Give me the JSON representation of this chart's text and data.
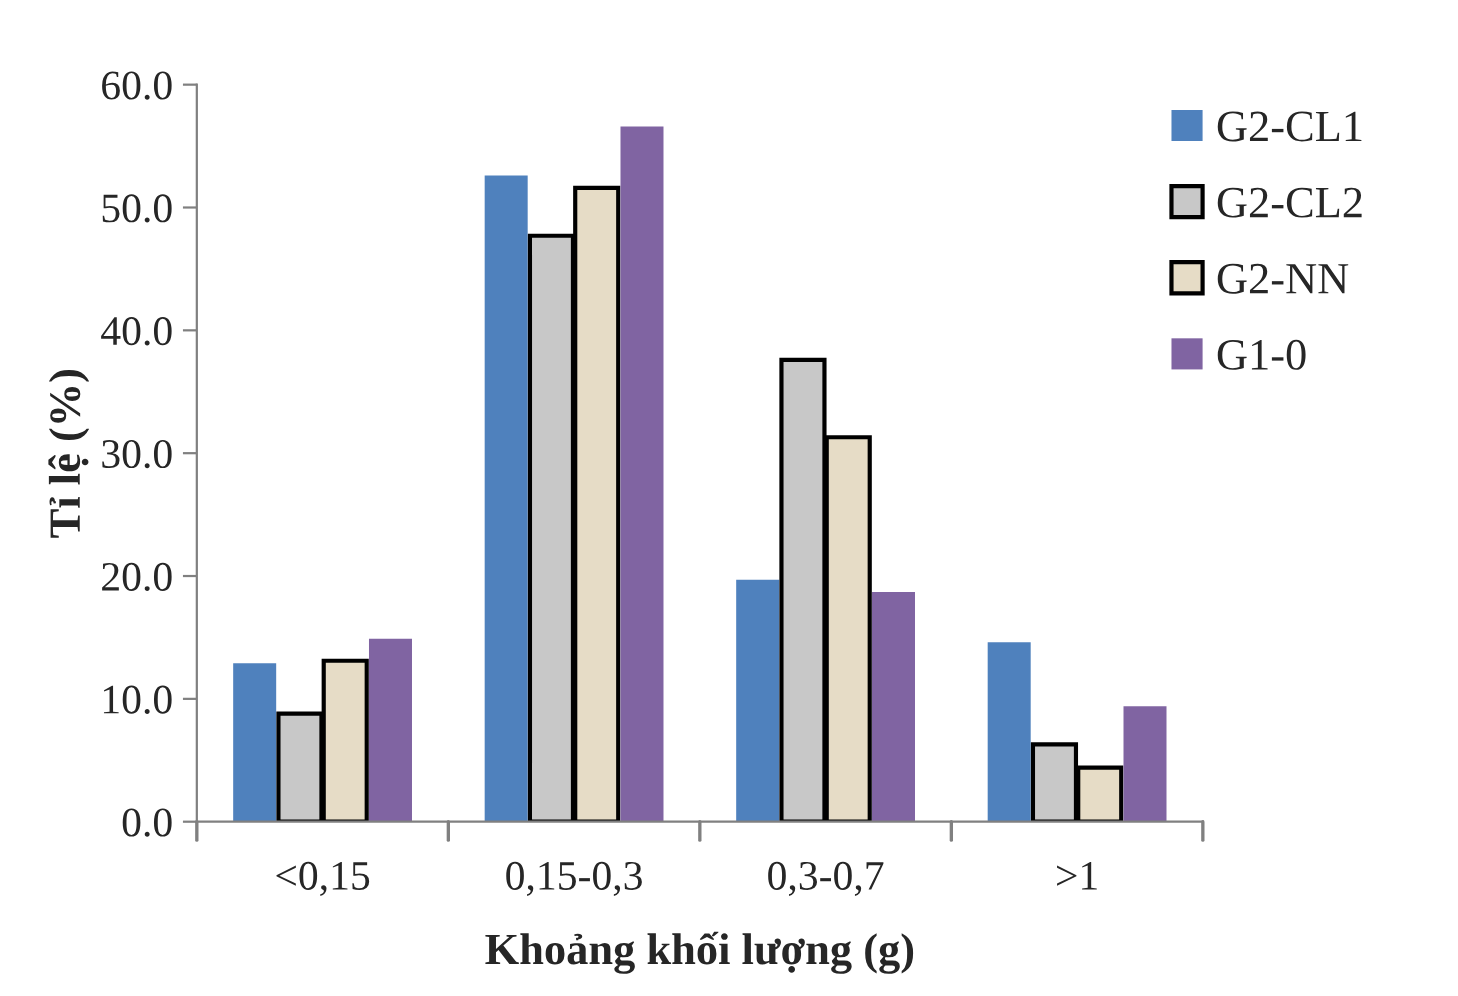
{
  "chart_data": {
    "type": "bar",
    "xlabel": "Khoảng khối lượng (g)",
    "ylabel": "Tỉ lệ (%)",
    "categories": [
      "<0,15",
      "0,15-0,3",
      "0,3-0,7",
      ">1"
    ],
    "series": [
      {
        "name": "G2-CL1",
        "color": "#4f81bd",
        "values": [
          12.9,
          52.6,
          19.7,
          14.6
        ]
      },
      {
        "name": "G2-CL2",
        "color": "#c8c8c8",
        "values": [
          8.8,
          47.7,
          37.6,
          6.3
        ]
      },
      {
        "name": "G2-NN",
        "color": "#e6dcc6",
        "values": [
          13.1,
          51.6,
          31.3,
          4.4
        ]
      },
      {
        "name": "G1-0",
        "color": "#8064a2",
        "values": [
          14.9,
          56.6,
          18.7,
          9.4
        ]
      }
    ],
    "ylim": [
      0,
      60
    ],
    "yticks": [
      {
        "value": 0,
        "label": "0.0"
      },
      {
        "value": 10,
        "label": "10.0"
      },
      {
        "value": 20,
        "label": "20.0"
      },
      {
        "value": 30,
        "label": "30.0"
      },
      {
        "value": 40,
        "label": "40.0"
      },
      {
        "value": 50,
        "label": "50.0"
      },
      {
        "value": 60,
        "label": "60.0"
      }
    ],
    "grid": false,
    "legend": "top right"
  }
}
